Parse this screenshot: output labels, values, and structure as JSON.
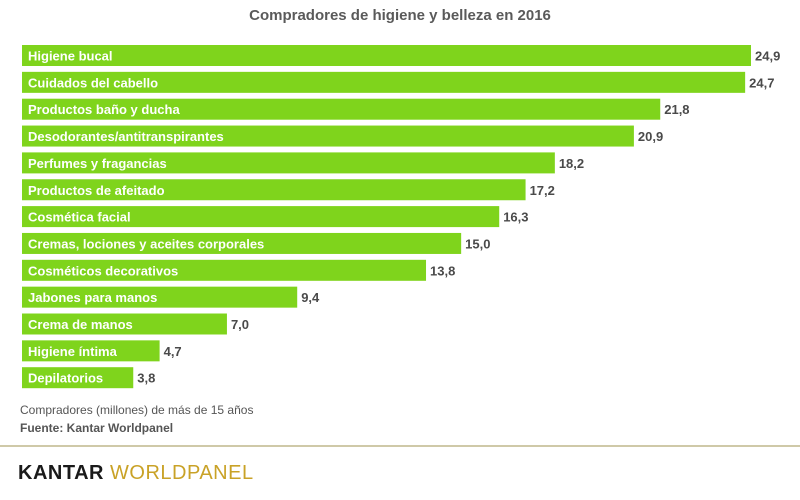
{
  "chart_data": {
    "type": "bar",
    "orientation": "horizontal",
    "title": "Compradores de higiene y belleza en 2016",
    "categories": [
      "Higiene bucal",
      "Cuidados del cabello",
      "Productos baño y ducha",
      "Desodorantes/antitranspirantes",
      "Perfumes y fragancias",
      "Productos de afeitado",
      "Cosmética facial",
      "Cremas, lociones y aceites corporales",
      "Cosméticos decorativos",
      "Jabones para manos",
      "Crema de manos",
      "Higiene íntima",
      "Depilatorios"
    ],
    "values": [
      24.9,
      24.7,
      21.8,
      20.9,
      18.2,
      17.2,
      16.3,
      15.0,
      13.8,
      9.4,
      7.0,
      4.7,
      3.8
    ],
    "value_labels": [
      "24,9",
      "24,7",
      "21,8",
      "20,9",
      "18,2",
      "17,2",
      "16,3",
      "15,0",
      "13,8",
      "9,4",
      "7,0",
      "4,7",
      "3,8"
    ],
    "xlabel": "",
    "ylabel": "",
    "xlim": [
      0,
      24.9
    ],
    "bar_color": "#7fd41c"
  },
  "footer": {
    "note": "Compradores (millones) de más de 15 años",
    "source": "Fuente: Kantar Worldpanel"
  },
  "brand": {
    "logo_part1": "KANTAR ",
    "logo_part2": "WORLDPANEL",
    "color_primary": "#1a1a1a",
    "color_accent": "#c9a227"
  }
}
